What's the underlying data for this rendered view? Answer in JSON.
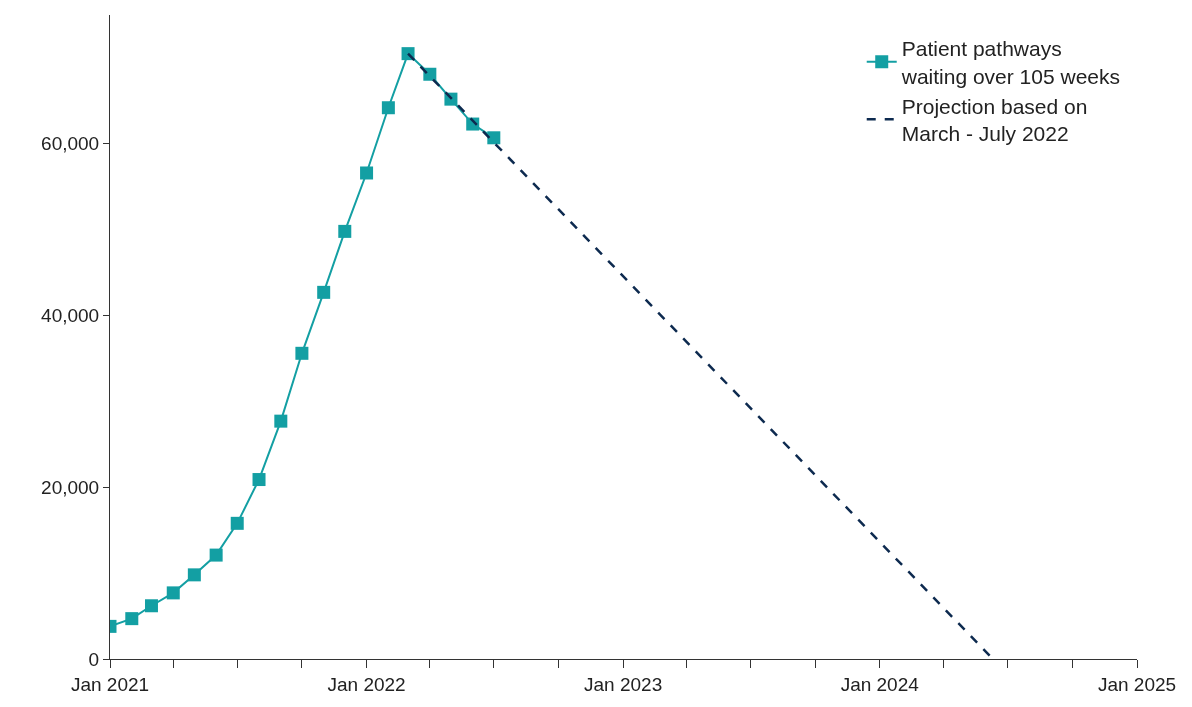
{
  "chart_data": {
    "type": "line",
    "x": [
      "2021-01",
      "2021-02",
      "2021-03",
      "2021-04",
      "2021-05",
      "2021-06",
      "2021-07",
      "2021-08",
      "2021-09",
      "2021-10",
      "2021-11",
      "2021-12",
      "2022-01",
      "2022-02",
      "2022-03",
      "2022-04",
      "2022-05",
      "2022-06",
      "2022-07"
    ],
    "series": [
      {
        "name": "Patient pathways\nwaiting over 105 weeks",
        "color": "#139fa3",
        "marker": "square",
        "line_style": "solid",
        "values": [
          3800,
          4700,
          6200,
          7700,
          9800,
          12100,
          15800,
          20900,
          27700,
          35600,
          42700,
          49800,
          56600,
          64200,
          70500,
          68100,
          65200,
          62300,
          60700
        ]
      },
      {
        "name": "Projection based on\nMarch - July 2022",
        "color": "#0d2a4f",
        "type": "line",
        "marker": "none",
        "line_style": "dashed",
        "x": [
          "2022-03-01",
          "2024-06-10"
        ],
        "values": [
          70500,
          0
        ]
      }
    ],
    "xlim": [
      "2021-01-01",
      "2025-01-01"
    ],
    "xticks": [
      {
        "value": "2021-01-01",
        "label": "Jan 2021"
      },
      {
        "value": "2021-04-01",
        "label": null
      },
      {
        "value": "2021-07-01",
        "label": null
      },
      {
        "value": "2021-10-01",
        "label": null
      },
      {
        "value": "2022-01-01",
        "label": "Jan 2022"
      },
      {
        "value": "2022-04-01",
        "label": null
      },
      {
        "value": "2022-07-01",
        "label": null
      },
      {
        "value": "2022-10-01",
        "label": null
      },
      {
        "value": "2023-01-01",
        "label": "Jan 2023"
      },
      {
        "value": "2023-04-01",
        "label": null
      },
      {
        "value": "2023-07-01",
        "label": null
      },
      {
        "value": "2023-10-01",
        "label": null
      },
      {
        "value": "2024-01-01",
        "label": "Jan 2024"
      },
      {
        "value": "2024-04-01",
        "label": null
      },
      {
        "value": "2024-07-01",
        "label": null
      },
      {
        "value": "2024-10-01",
        "label": null
      },
      {
        "value": "2025-01-01",
        "label": "Jan 2025"
      }
    ],
    "ylim": [
      0,
      75000
    ],
    "yticks": [
      {
        "value": 0,
        "label": "0"
      },
      {
        "value": 20000,
        "label": "20,000"
      },
      {
        "value": 40000,
        "label": "40,000"
      },
      {
        "value": 60000,
        "label": "60,000"
      }
    ],
    "legend": "top right"
  }
}
